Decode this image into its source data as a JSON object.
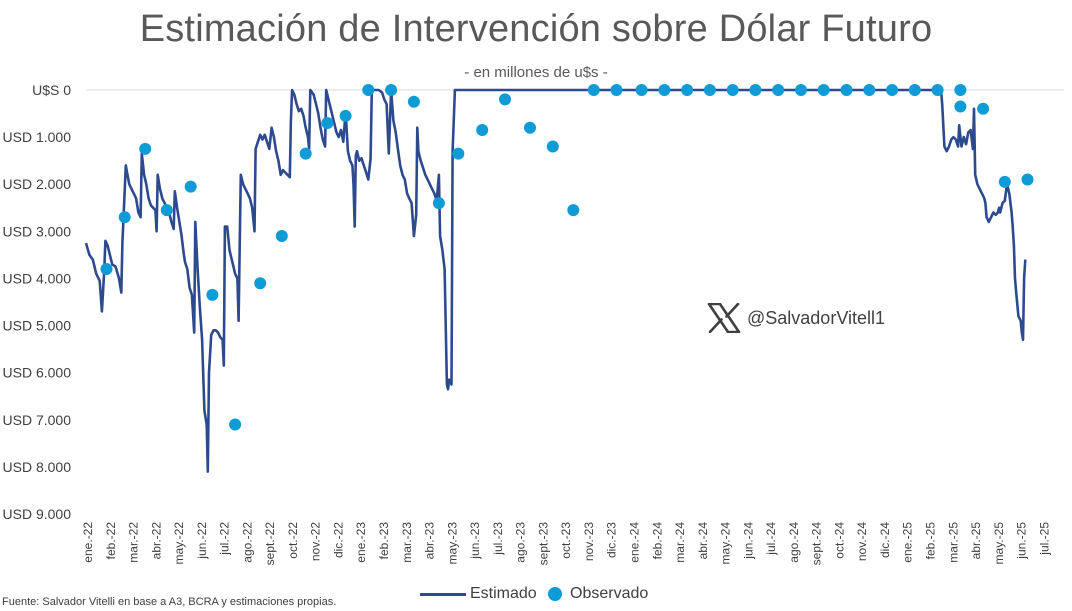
{
  "header": {
    "title": "Estimación de Intervención sobre Dólar Futuro",
    "subtitle": "- en millones de u$s -"
  },
  "watermark": {
    "handle": "@SalvadorVitell1",
    "icon": "x-logo-icon"
  },
  "source": "Fuente: Salvador Vitelli en base a A3, BCRA y estimaciones propias.",
  "legend": {
    "line_label": "Estimado",
    "dot_label": "Observado"
  },
  "colors": {
    "line": "#2E4A8F",
    "dots": "#0E9BD6",
    "gridline": "#D9D9D9"
  },
  "chart_data": {
    "type": "line",
    "title": "Estimación de Intervención sobre Dólar Futuro",
    "subtitle": "- en millones de u$s -",
    "y_axis_inverted": true,
    "ylim": [
      0,
      9000
    ],
    "y_ticks": [
      0,
      1000,
      2000,
      3000,
      4000,
      5000,
      6000,
      7000,
      8000,
      9000
    ],
    "y_tick_labels": [
      "U$S 0",
      "USD 1.000",
      "USD 2.000",
      "USD 3.000",
      "USD 4.000",
      "USD 5.000",
      "USD 6.000",
      "USD 7.000",
      "USD 8.000",
      "USD 9.000"
    ],
    "x_tick_labels": [
      "ene.-22",
      "feb.-22",
      "mar.-22",
      "abr.-22",
      "may.-22",
      "jun.-22",
      "jul.-22",
      "ago.-22",
      "sept.-22",
      "oct.-22",
      "nov.-22",
      "dic.-22",
      "ene.-23",
      "feb.-23",
      "mar.-23",
      "abr.-23",
      "may.-23",
      "jun.-23",
      "jul.-23",
      "ago.-23",
      "sept.-23",
      "oct.-23",
      "nov.-23",
      "dic.-23",
      "ene.-24",
      "feb.-24",
      "mar.-24",
      "abr.-24",
      "may.-24",
      "jun.-24",
      "jul.-24",
      "ago.-24",
      "sept.-24",
      "oct.-24",
      "nov.-24",
      "dic.-24",
      "ene.-25",
      "feb.-25",
      "mar.-25",
      "abr.-25",
      "may.-25",
      "jun.-25",
      "jul.-25"
    ],
    "grid": true,
    "legend_position": "bottom",
    "series": [
      {
        "name": "Estimado",
        "style": "line",
        "points": [
          [
            0.0,
            3250
          ],
          [
            0.15,
            3500
          ],
          [
            0.3,
            3600
          ],
          [
            0.45,
            3900
          ],
          [
            0.6,
            4050
          ],
          [
            0.7,
            4700
          ],
          [
            0.8,
            3850
          ],
          [
            0.85,
            3200
          ],
          [
            0.95,
            3300
          ],
          [
            1.05,
            3500
          ],
          [
            1.15,
            3700
          ],
          [
            1.3,
            3750
          ],
          [
            1.45,
            4000
          ],
          [
            1.55,
            4300
          ],
          [
            1.6,
            3250
          ],
          [
            1.75,
            1600
          ],
          [
            1.8,
            1750
          ],
          [
            1.9,
            2000
          ],
          [
            2.0,
            2100
          ],
          [
            2.1,
            2200
          ],
          [
            2.2,
            2300
          ],
          [
            2.3,
            2600
          ],
          [
            2.4,
            2700
          ],
          [
            2.45,
            1350
          ],
          [
            2.55,
            1800
          ],
          [
            2.65,
            2000
          ],
          [
            2.75,
            2300
          ],
          [
            2.85,
            2450
          ],
          [
            2.95,
            2500
          ],
          [
            3.05,
            2550
          ],
          [
            3.1,
            3000
          ],
          [
            3.15,
            1800
          ],
          [
            3.25,
            2100
          ],
          [
            3.35,
            2300
          ],
          [
            3.45,
            2400
          ],
          [
            3.55,
            2500
          ],
          [
            3.65,
            2600
          ],
          [
            3.75,
            2800
          ],
          [
            3.85,
            2950
          ],
          [
            3.9,
            2150
          ],
          [
            4.0,
            2500
          ],
          [
            4.1,
            2800
          ],
          [
            4.2,
            3100
          ],
          [
            4.3,
            3500
          ],
          [
            4.35,
            3650
          ],
          [
            4.45,
            3800
          ],
          [
            4.55,
            4200
          ],
          [
            4.65,
            4350
          ],
          [
            4.75,
            5150
          ],
          [
            4.8,
            2800
          ],
          [
            4.9,
            3800
          ],
          [
            5.0,
            4600
          ],
          [
            5.1,
            5300
          ],
          [
            5.2,
            6800
          ],
          [
            5.3,
            7100
          ],
          [
            5.35,
            8100
          ],
          [
            5.4,
            6000
          ],
          [
            5.5,
            5200
          ],
          [
            5.6,
            5100
          ],
          [
            5.7,
            5100
          ],
          [
            5.8,
            5150
          ],
          [
            5.9,
            5250
          ],
          [
            6.0,
            5300
          ],
          [
            6.05,
            5850
          ],
          [
            6.1,
            2900
          ],
          [
            6.2,
            2900
          ],
          [
            6.3,
            3400
          ],
          [
            6.45,
            3700
          ],
          [
            6.55,
            3900
          ],
          [
            6.65,
            4000
          ],
          [
            6.7,
            4900
          ],
          [
            6.75,
            3300
          ],
          [
            6.8,
            1800
          ],
          [
            6.9,
            2000
          ],
          [
            7.0,
            2100
          ],
          [
            7.1,
            2200
          ],
          [
            7.2,
            2300
          ],
          [
            7.3,
            2500
          ],
          [
            7.4,
            3000
          ],
          [
            7.45,
            1250
          ],
          [
            7.55,
            1100
          ],
          [
            7.65,
            950
          ],
          [
            7.75,
            1050
          ],
          [
            7.85,
            950
          ],
          [
            7.95,
            1100
          ],
          [
            8.05,
            1250
          ],
          [
            8.15,
            800
          ],
          [
            8.25,
            1000
          ],
          [
            8.35,
            1300
          ],
          [
            8.45,
            1500
          ],
          [
            8.55,
            1800
          ],
          [
            8.65,
            1700
          ],
          [
            8.75,
            1750
          ],
          [
            8.85,
            1800
          ],
          [
            8.95,
            1850
          ],
          [
            9.0,
            650
          ],
          [
            9.05,
            0
          ],
          [
            9.15,
            100
          ],
          [
            9.25,
            300
          ],
          [
            9.35,
            450
          ],
          [
            9.45,
            400
          ],
          [
            9.55,
            550
          ],
          [
            9.65,
            800
          ],
          [
            9.75,
            1000
          ],
          [
            9.8,
            1250
          ],
          [
            9.85,
            0
          ],
          [
            10.0,
            100
          ],
          [
            10.1,
            300
          ],
          [
            10.2,
            500
          ],
          [
            10.3,
            800
          ],
          [
            10.4,
            1050
          ],
          [
            10.5,
            1200
          ],
          [
            10.55,
            0
          ],
          [
            10.7,
            300
          ],
          [
            10.8,
            500
          ],
          [
            10.9,
            700
          ],
          [
            11.0,
            900
          ],
          [
            11.1,
            1000
          ],
          [
            11.2,
            850
          ],
          [
            11.3,
            1100
          ],
          [
            11.4,
            450
          ],
          [
            11.5,
            1300
          ],
          [
            11.6,
            1500
          ],
          [
            11.7,
            1600
          ],
          [
            11.75,
            2000
          ],
          [
            11.8,
            2900
          ],
          [
            11.85,
            1400
          ],
          [
            11.9,
            1300
          ],
          [
            12.0,
            1500
          ],
          [
            12.1,
            1450
          ],
          [
            12.2,
            1600
          ],
          [
            12.3,
            1750
          ],
          [
            12.4,
            1900
          ],
          [
            12.5,
            1450
          ],
          [
            12.55,
            0
          ],
          [
            12.7,
            0
          ],
          [
            12.85,
            0
          ],
          [
            13.0,
            50
          ],
          [
            13.1,
            200
          ],
          [
            13.2,
            300
          ],
          [
            13.3,
            1350
          ],
          [
            13.4,
            0
          ],
          [
            13.5,
            650
          ],
          [
            13.6,
            900
          ],
          [
            13.7,
            1250
          ],
          [
            13.8,
            1600
          ],
          [
            13.9,
            1800
          ],
          [
            14.0,
            1900
          ],
          [
            14.1,
            2200
          ],
          [
            14.2,
            2300
          ],
          [
            14.3,
            2400
          ],
          [
            14.4,
            3100
          ],
          [
            14.5,
            2650
          ],
          [
            14.55,
            800
          ],
          [
            14.6,
            1300
          ],
          [
            14.7,
            1500
          ],
          [
            14.8,
            1650
          ],
          [
            14.9,
            1800
          ],
          [
            15.0,
            1900
          ],
          [
            15.1,
            2000
          ],
          [
            15.2,
            2100
          ],
          [
            15.3,
            2200
          ],
          [
            15.4,
            2350
          ],
          [
            15.5,
            1800
          ],
          [
            15.55,
            3100
          ],
          [
            15.65,
            3400
          ],
          [
            15.75,
            3800
          ],
          [
            15.85,
            6250
          ],
          [
            15.9,
            6350
          ],
          [
            15.95,
            6150
          ],
          [
            16.05,
            6250
          ],
          [
            16.1,
            1300
          ],
          [
            16.2,
            0
          ],
          [
            17,
            0
          ],
          [
            18,
            0
          ],
          [
            19,
            0
          ],
          [
            20,
            0
          ],
          [
            21,
            0
          ],
          [
            22,
            0
          ],
          [
            23,
            0
          ],
          [
            24,
            0
          ],
          [
            25,
            0
          ],
          [
            26,
            0
          ],
          [
            27,
            0
          ],
          [
            28,
            0
          ],
          [
            29,
            0
          ],
          [
            30,
            0
          ],
          [
            31,
            0
          ],
          [
            32,
            0
          ],
          [
            33,
            0
          ],
          [
            34,
            0
          ],
          [
            35,
            0
          ],
          [
            36,
            0
          ],
          [
            37,
            0
          ],
          [
            37.55,
            0
          ],
          [
            37.6,
            300
          ],
          [
            37.7,
            1200
          ],
          [
            37.8,
            1300
          ],
          [
            37.9,
            1200
          ],
          [
            38.0,
            1050
          ],
          [
            38.1,
            1000
          ],
          [
            38.2,
            1050
          ],
          [
            38.3,
            1200
          ],
          [
            38.35,
            750
          ],
          [
            38.45,
            1200
          ],
          [
            38.55,
            1000
          ],
          [
            38.65,
            1150
          ],
          [
            38.75,
            900
          ],
          [
            38.85,
            850
          ],
          [
            38.95,
            1250
          ],
          [
            39.0,
            400
          ],
          [
            39.05,
            1800
          ],
          [
            39.15,
            2000
          ],
          [
            39.25,
            2100
          ],
          [
            39.35,
            2200
          ],
          [
            39.45,
            2300
          ],
          [
            39.5,
            2400
          ],
          [
            39.55,
            2700
          ],
          [
            39.65,
            2800
          ],
          [
            39.75,
            2700
          ],
          [
            39.85,
            2600
          ],
          [
            39.95,
            2650
          ],
          [
            40.05,
            2600
          ],
          [
            40.1,
            2500
          ],
          [
            40.15,
            2600
          ],
          [
            40.25,
            2400
          ],
          [
            40.35,
            2350
          ],
          [
            40.45,
            2000
          ],
          [
            40.55,
            2200
          ],
          [
            40.65,
            2600
          ],
          [
            40.7,
            2900
          ],
          [
            40.75,
            3300
          ],
          [
            40.8,
            4000
          ],
          [
            40.85,
            4300
          ],
          [
            40.95,
            4800
          ],
          [
            41.05,
            4900
          ],
          [
            41.1,
            5150
          ],
          [
            41.15,
            5300
          ],
          [
            41.2,
            4000
          ],
          [
            41.25,
            3600
          ]
        ]
      },
      {
        "name": "Observado",
        "style": "markers",
        "points": [
          [
            0.9,
            3800
          ],
          [
            1.7,
            2700
          ],
          [
            2.6,
            1250
          ],
          [
            3.55,
            2550
          ],
          [
            4.6,
            2050
          ],
          [
            5.55,
            4350
          ],
          [
            6.55,
            7100
          ],
          [
            7.65,
            4100
          ],
          [
            8.6,
            3100
          ],
          [
            9.65,
            1350
          ],
          [
            10.6,
            700
          ],
          [
            11.4,
            550
          ],
          [
            12.4,
            0
          ],
          [
            13.4,
            0
          ],
          [
            14.4,
            250
          ],
          [
            15.5,
            2400
          ],
          [
            16.35,
            1350
          ],
          [
            17.4,
            850
          ],
          [
            18.4,
            200
          ],
          [
            19.5,
            800
          ],
          [
            20.5,
            1200
          ],
          [
            21.4,
            2550
          ],
          [
            22.3,
            0
          ],
          [
            23.3,
            0
          ],
          [
            24.4,
            0
          ],
          [
            25.4,
            0
          ],
          [
            26.4,
            0
          ],
          [
            27.4,
            0
          ],
          [
            28.4,
            0
          ],
          [
            29.4,
            0
          ],
          [
            30.4,
            0
          ],
          [
            31.4,
            0
          ],
          [
            32.4,
            0
          ],
          [
            33.4,
            0
          ],
          [
            34.4,
            0
          ],
          [
            35.4,
            0
          ],
          [
            36.4,
            0
          ],
          [
            37.4,
            0
          ],
          [
            38.4,
            0
          ],
          [
            38.4,
            350
          ],
          [
            39.4,
            400
          ],
          [
            40.35,
            1950
          ],
          [
            41.35,
            1900
          ]
        ]
      }
    ]
  }
}
